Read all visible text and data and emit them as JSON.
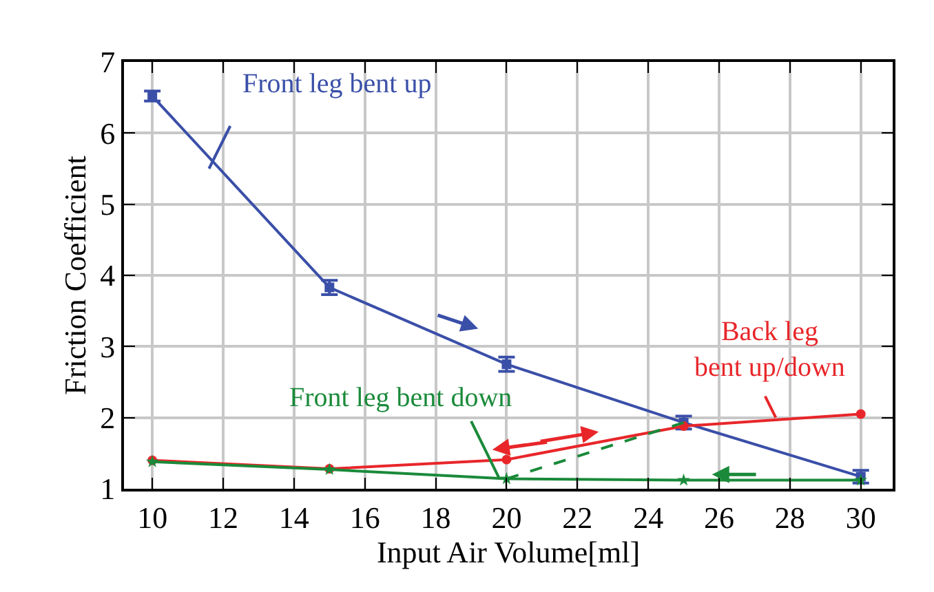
{
  "chart_data": {
    "type": "line",
    "xlabel": "Input Air Volume[ml]",
    "ylabel": "Friction Coefficient",
    "x": [
      10,
      15,
      20,
      25,
      30
    ],
    "series": [
      {
        "name": "Front leg bent up",
        "color": "#3a4fa8",
        "values": [
          6.52,
          3.83,
          2.75,
          1.93,
          1.17
        ],
        "errors": [
          0.07,
          0.1,
          0.1,
          0.09,
          0.09
        ],
        "marker": "square"
      },
      {
        "name": "Back leg\nbent up/down",
        "color": "#e8262a",
        "values": [
          1.4,
          1.28,
          1.41,
          1.88,
          2.05
        ],
        "marker": "circle"
      },
      {
        "name": "Front leg bent down",
        "color": "#1a8a3a",
        "values": [
          1.38,
          1.27,
          1.14,
          1.12,
          1.12
        ],
        "marker": "star"
      },
      {
        "color": "#1a8a3a",
        "x": [
          20,
          25
        ],
        "values": [
          1.14,
          1.93
        ],
        "line_style": "dashed"
      }
    ],
    "xlim": [
      9.2,
      30.9
    ],
    "ylim": [
      1,
      7
    ],
    "xticks": [
      10,
      12,
      14,
      16,
      18,
      20,
      22,
      24,
      26,
      28,
      30
    ],
    "yticks": [
      1,
      2,
      3,
      4,
      5,
      6,
      7
    ],
    "grid": true,
    "legend": false
  }
}
